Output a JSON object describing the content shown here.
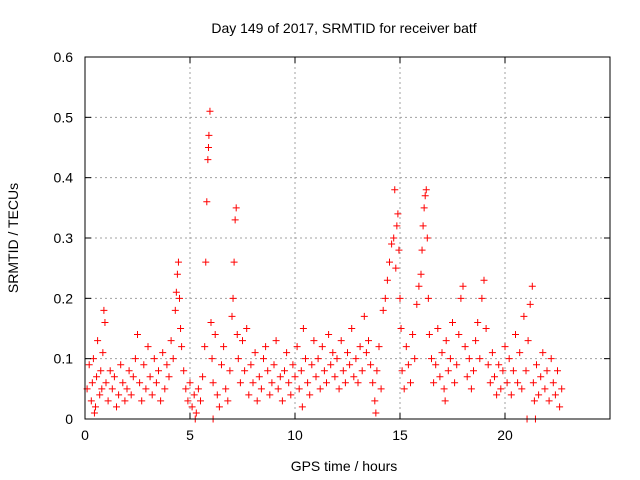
{
  "chart_data": {
    "type": "scatter",
    "title": "Day 149 of 2017, SRMTID for receiver batf",
    "xlabel": "GPS time / hours",
    "ylabel": "SRMTID / TECUs",
    "xlim": [
      0,
      25
    ],
    "ylim": [
      0,
      0.6
    ],
    "xticks": [
      0,
      5,
      10,
      15,
      20
    ],
    "xtick_labels": [
      "0",
      "5",
      "10",
      "15",
      "20"
    ],
    "yticks": [
      0,
      0.1,
      0.2,
      0.3,
      0.4,
      0.5,
      0.6
    ],
    "ytick_labels": [
      "0",
      "0.1",
      "0.2",
      "0.3",
      "0.4",
      "0.5",
      "0.6"
    ],
    "grid": true,
    "marker": "plus",
    "color": "#ff0000",
    "series": [
      {
        "name": "SRMTID",
        "points": [
          [
            0.1,
            0.05
          ],
          [
            0.2,
            0.09
          ],
          [
            0.3,
            0.03
          ],
          [
            0.35,
            0.06
          ],
          [
            0.4,
            0.1
          ],
          [
            0.5,
            0.02
          ],
          [
            0.55,
            0.07
          ],
          [
            0.6,
            0.13
          ],
          [
            0.7,
            0.04
          ],
          [
            0.75,
            0.08
          ],
          [
            0.8,
            0.05
          ],
          [
            0.85,
            0.11
          ],
          [
            0.9,
            0.18
          ],
          [
            0.95,
            0.16
          ],
          [
            1.0,
            0.06
          ],
          [
            1.1,
            0.03
          ],
          [
            1.2,
            0.08
          ],
          [
            1.3,
            0.05
          ],
          [
            1.4,
            0.07
          ],
          [
            1.5,
            0.02
          ],
          [
            1.6,
            0.04
          ],
          [
            1.7,
            0.09
          ],
          [
            1.8,
            0.06
          ],
          [
            1.9,
            0.03
          ],
          [
            2.0,
            0.05
          ],
          [
            2.1,
            0.08
          ],
          [
            2.2,
            0.04
          ],
          [
            2.3,
            0.07
          ],
          [
            2.4,
            0.1
          ],
          [
            2.5,
            0.14
          ],
          [
            2.6,
            0.06
          ],
          [
            2.7,
            0.03
          ],
          [
            2.8,
            0.09
          ],
          [
            2.9,
            0.05
          ],
          [
            3.0,
            0.12
          ],
          [
            3.1,
            0.07
          ],
          [
            3.2,
            0.04
          ],
          [
            3.3,
            0.1
          ],
          [
            3.4,
            0.06
          ],
          [
            3.5,
            0.08
          ],
          [
            3.6,
            0.03
          ],
          [
            3.7,
            0.11
          ],
          [
            3.8,
            0.05
          ],
          [
            3.9,
            0.09
          ],
          [
            4.0,
            0.07
          ],
          [
            4.1,
            0.13
          ],
          [
            4.2,
            0.1
          ],
          [
            4.3,
            0.18
          ],
          [
            4.35,
            0.21
          ],
          [
            4.4,
            0.24
          ],
          [
            4.45,
            0.26
          ],
          [
            4.5,
            0.2
          ],
          [
            4.55,
            0.15
          ],
          [
            4.6,
            0.12
          ],
          [
            4.7,
            0.08
          ],
          [
            4.8,
            0.05
          ],
          [
            4.9,
            0.03
          ],
          [
            5.0,
            0.06
          ],
          [
            5.1,
            0.02
          ],
          [
            5.2,
            0.04
          ],
          [
            5.3,
            0.01
          ],
          [
            5.4,
            0.05
          ],
          [
            5.5,
            0.03
          ],
          [
            5.6,
            0.07
          ],
          [
            5.7,
            0.12
          ],
          [
            5.75,
            0.26
          ],
          [
            5.8,
            0.36
          ],
          [
            5.85,
            0.43
          ],
          [
            5.88,
            0.45
          ],
          [
            5.9,
            0.47
          ],
          [
            5.95,
            0.51
          ],
          [
            6.0,
            0.16
          ],
          [
            6.05,
            0.1
          ],
          [
            6.1,
            0.06
          ],
          [
            6.2,
            0.14
          ],
          [
            6.3,
            0.04
          ],
          [
            6.4,
            0.02
          ],
          [
            6.5,
            0.09
          ],
          [
            6.6,
            0.12
          ],
          [
            6.7,
            0.05
          ],
          [
            6.8,
            0.03
          ],
          [
            6.9,
            0.08
          ],
          [
            7.0,
            0.17
          ],
          [
            7.05,
            0.2
          ],
          [
            7.1,
            0.26
          ],
          [
            7.15,
            0.33
          ],
          [
            7.2,
            0.35
          ],
          [
            7.25,
            0.14
          ],
          [
            7.3,
            0.1
          ],
          [
            7.4,
            0.06
          ],
          [
            7.5,
            0.13
          ],
          [
            7.6,
            0.08
          ],
          [
            7.7,
            0.15
          ],
          [
            7.8,
            0.04
          ],
          [
            7.9,
            0.09
          ],
          [
            8.0,
            0.06
          ],
          [
            8.1,
            0.11
          ],
          [
            8.2,
            0.03
          ],
          [
            8.3,
            0.07
          ],
          [
            8.4,
            0.05
          ],
          [
            8.5,
            0.1
          ],
          [
            8.6,
            0.12
          ],
          [
            8.7,
            0.08
          ],
          [
            8.8,
            0.04
          ],
          [
            8.9,
            0.06
          ],
          [
            9.0,
            0.09
          ],
          [
            9.1,
            0.13
          ],
          [
            9.2,
            0.05
          ],
          [
            9.3,
            0.07
          ],
          [
            9.4,
            0.03
          ],
          [
            9.5,
            0.08
          ],
          [
            9.6,
            0.11
          ],
          [
            9.7,
            0.06
          ],
          [
            9.8,
            0.04
          ],
          [
            9.9,
            0.09
          ],
          [
            10.0,
            0.07
          ],
          [
            10.1,
            0.12
          ],
          [
            10.2,
            0.05
          ],
          [
            10.3,
            0.08
          ],
          [
            10.4,
            0.15
          ],
          [
            10.5,
            0.1
          ],
          [
            10.6,
            0.06
          ],
          [
            10.7,
            0.04
          ],
          [
            10.8,
            0.09
          ],
          [
            10.9,
            0.13
          ],
          [
            11.0,
            0.07
          ],
          [
            11.1,
            0.1
          ],
          [
            11.2,
            0.05
          ],
          [
            11.3,
            0.12
          ],
          [
            11.4,
            0.08
          ],
          [
            11.5,
            0.06
          ],
          [
            11.6,
            0.14
          ],
          [
            11.7,
            0.09
          ],
          [
            11.8,
            0.11
          ],
          [
            11.9,
            0.07
          ],
          [
            12.0,
            0.1
          ],
          [
            12.1,
            0.05
          ],
          [
            12.2,
            0.13
          ],
          [
            12.3,
            0.08
          ],
          [
            12.4,
            0.06
          ],
          [
            12.5,
            0.11
          ],
          [
            12.6,
            0.09
          ],
          [
            12.7,
            0.15
          ],
          [
            12.8,
            0.07
          ],
          [
            12.9,
            0.1
          ],
          [
            13.0,
            0.06
          ],
          [
            13.1,
            0.12
          ],
          [
            13.2,
            0.08
          ],
          [
            13.3,
            0.17
          ],
          [
            13.4,
            0.11
          ],
          [
            13.5,
            0.13
          ],
          [
            13.6,
            0.09
          ],
          [
            13.7,
            0.06
          ],
          [
            13.8,
            0.03
          ],
          [
            13.9,
            0.08
          ],
          [
            14.0,
            0.12
          ],
          [
            14.1,
            0.05
          ],
          [
            14.2,
            0.18
          ],
          [
            14.3,
            0.2
          ],
          [
            14.4,
            0.23
          ],
          [
            14.5,
            0.26
          ],
          [
            14.6,
            0.29
          ],
          [
            14.7,
            0.3
          ],
          [
            14.75,
            0.38
          ],
          [
            14.8,
            0.25
          ],
          [
            14.85,
            0.32
          ],
          [
            14.9,
            0.34
          ],
          [
            14.95,
            0.28
          ],
          [
            15.0,
            0.2
          ],
          [
            15.05,
            0.15
          ],
          [
            15.1,
            0.08
          ],
          [
            15.2,
            0.05
          ],
          [
            15.3,
            0.12
          ],
          [
            15.4,
            0.09
          ],
          [
            15.5,
            0.06
          ],
          [
            15.6,
            0.14
          ],
          [
            15.7,
            0.1
          ],
          [
            15.8,
            0.19
          ],
          [
            15.9,
            0.22
          ],
          [
            16.0,
            0.24
          ],
          [
            16.05,
            0.28
          ],
          [
            16.1,
            0.32
          ],
          [
            16.15,
            0.35
          ],
          [
            16.2,
            0.37
          ],
          [
            16.25,
            0.38
          ],
          [
            16.3,
            0.3
          ],
          [
            16.35,
            0.2
          ],
          [
            16.4,
            0.14
          ],
          [
            16.5,
            0.1
          ],
          [
            16.6,
            0.06
          ],
          [
            16.7,
            0.09
          ],
          [
            16.8,
            0.15
          ],
          [
            16.9,
            0.07
          ],
          [
            17.0,
            0.11
          ],
          [
            17.1,
            0.05
          ],
          [
            17.2,
            0.13
          ],
          [
            17.3,
            0.08
          ],
          [
            17.4,
            0.1
          ],
          [
            17.5,
            0.16
          ],
          [
            17.6,
            0.06
          ],
          [
            17.7,
            0.09
          ],
          [
            17.8,
            0.14
          ],
          [
            17.9,
            0.2
          ],
          [
            18.0,
            0.22
          ],
          [
            18.1,
            0.12
          ],
          [
            18.2,
            0.07
          ],
          [
            18.3,
            0.1
          ],
          [
            18.4,
            0.05
          ],
          [
            18.5,
            0.08
          ],
          [
            18.6,
            0.13
          ],
          [
            18.7,
            0.16
          ],
          [
            18.8,
            0.1
          ],
          [
            18.9,
            0.2
          ],
          [
            19.0,
            0.23
          ],
          [
            19.1,
            0.15
          ],
          [
            19.2,
            0.09
          ],
          [
            19.3,
            0.06
          ],
          [
            19.4,
            0.11
          ],
          [
            19.5,
            0.07
          ],
          [
            19.6,
            0.04
          ],
          [
            19.7,
            0.09
          ],
          [
            19.8,
            0.05
          ],
          [
            19.9,
            0.08
          ],
          [
            20.0,
            0.12
          ],
          [
            20.1,
            0.06
          ],
          [
            20.2,
            0.1
          ],
          [
            20.3,
            0.04
          ],
          [
            20.4,
            0.08
          ],
          [
            20.5,
            0.14
          ],
          [
            20.6,
            0.06
          ],
          [
            20.7,
            0.11
          ],
          [
            20.8,
            0.05
          ],
          [
            20.9,
            0.17
          ],
          [
            21.0,
            0.08
          ],
          [
            21.1,
            0.13
          ],
          [
            21.2,
            0.19
          ],
          [
            21.3,
            0.22
          ],
          [
            21.35,
            0.06
          ],
          [
            21.4,
            0.03
          ],
          [
            21.5,
            0.09
          ],
          [
            21.6,
            0.04
          ],
          [
            21.7,
            0.07
          ],
          [
            21.8,
            0.11
          ],
          [
            21.9,
            0.05
          ],
          [
            22.0,
            0.08
          ],
          [
            22.1,
            0.03
          ],
          [
            22.2,
            0.1
          ],
          [
            22.3,
            0.06
          ],
          [
            22.4,
            0.04
          ],
          [
            22.5,
            0.08
          ],
          [
            22.6,
            0.02
          ],
          [
            22.7,
            0.05
          ],
          [
            21.05,
            0.0
          ],
          [
            21.45,
            0.0
          ],
          [
            13.85,
            0.01
          ],
          [
            6.1,
            0.0
          ],
          [
            5.25,
            0.0
          ],
          [
            0.45,
            0.01
          ],
          [
            10.35,
            0.02
          ],
          [
            17.15,
            0.03
          ]
        ]
      }
    ]
  }
}
